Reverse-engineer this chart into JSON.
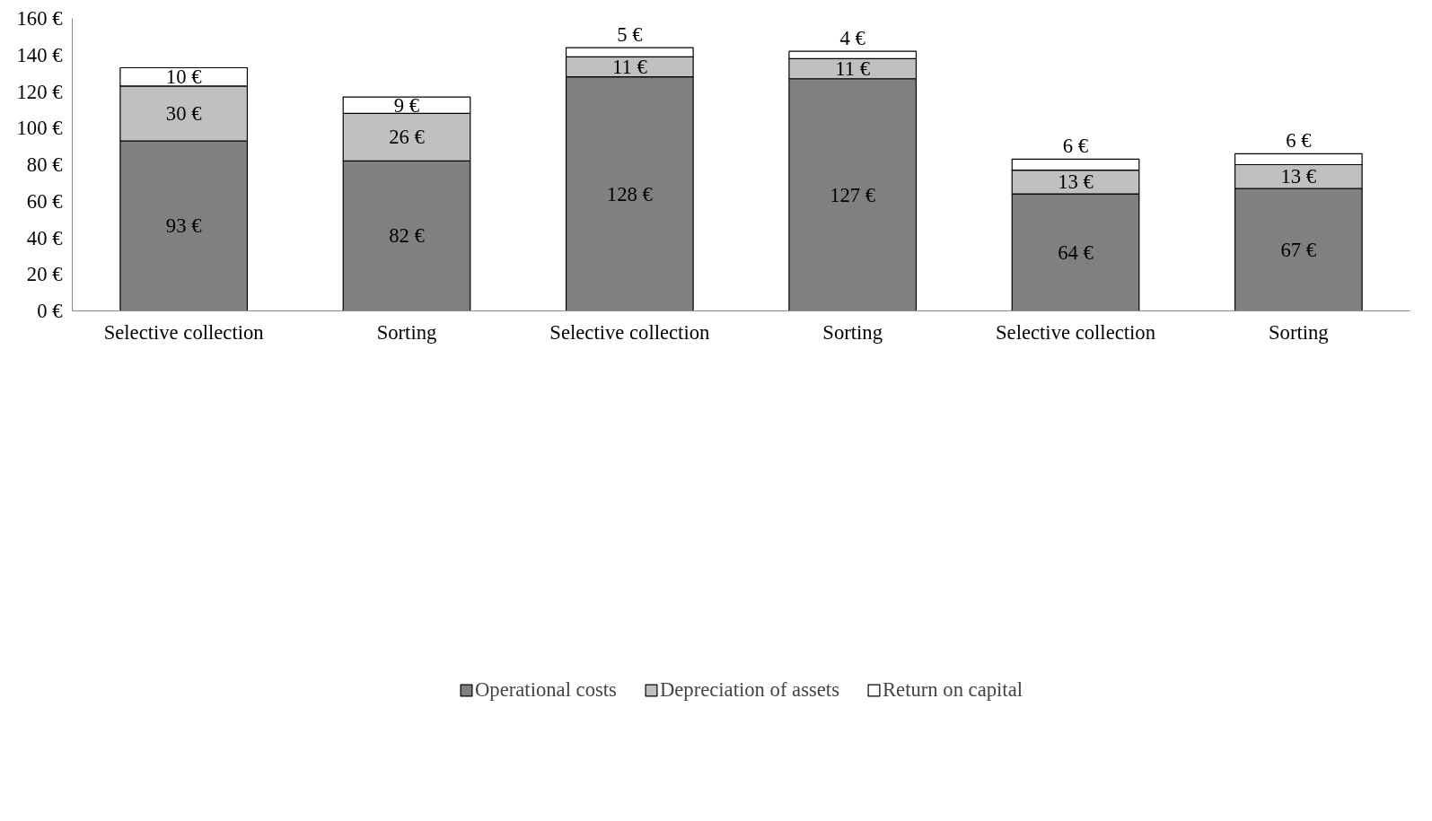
{
  "chart_data": {
    "type": "bar",
    "stacked": true,
    "categories": [
      "Selective collection",
      "Sorting",
      "Selective collection",
      "Sorting",
      "Selective collection",
      "Sorting"
    ],
    "series": [
      {
        "name": "Operational costs",
        "color": "#808080",
        "values": [
          93,
          82,
          128,
          127,
          64,
          67
        ],
        "value_labels": [
          "93 €",
          "82 €",
          "128 €",
          "127 €",
          "64 €",
          "67 €"
        ]
      },
      {
        "name": "Depreciation of assets",
        "color": "#c0c0c0",
        "values": [
          30,
          26,
          11,
          11,
          13,
          13
        ],
        "value_labels": [
          "30 €",
          "26 €",
          "11 €",
          "11 €",
          "13 €",
          "13 €"
        ]
      },
      {
        "name": "Return on capital",
        "color": "#ffffff",
        "values": [
          10,
          9,
          5,
          4,
          6,
          6
        ],
        "value_labels": [
          "10 €",
          "9 €",
          "5 €",
          "4 €",
          "6 €",
          "6 €"
        ]
      }
    ],
    "ylim": [
      0,
      160
    ],
    "yticks": [
      {
        "value": 0,
        "label": "0 €"
      },
      {
        "value": 20,
        "label": "20 €"
      },
      {
        "value": 40,
        "label": "40 €"
      },
      {
        "value": 60,
        "label": "60 €"
      },
      {
        "value": 80,
        "label": "80 €"
      },
      {
        "value": 100,
        "label": "100 €"
      },
      {
        "value": 120,
        "label": "120 €"
      },
      {
        "value": 140,
        "label": "140 €"
      },
      {
        "value": 160,
        "label": "160 €"
      }
    ],
    "grid": false,
    "legend": "bottom"
  }
}
